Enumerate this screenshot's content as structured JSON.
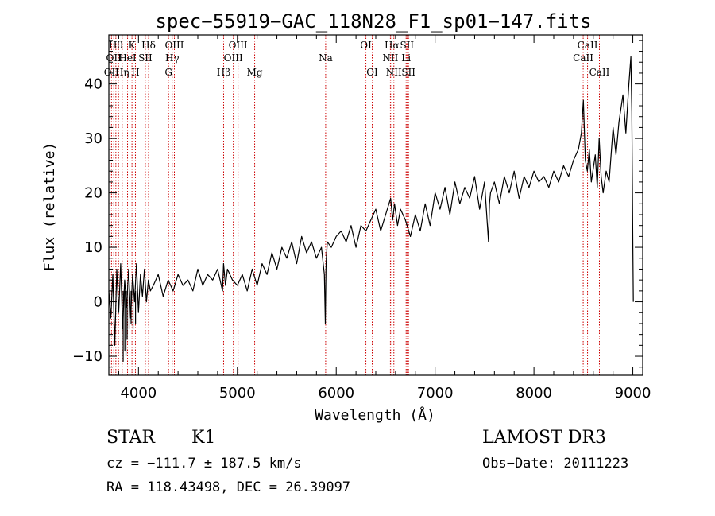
{
  "chart_data": {
    "type": "line",
    "title": "spec−55919−GAC_118N28_F1_sp01−147.fits",
    "xlabel": "Wavelength (Å)",
    "ylabel": "Flux (relative)",
    "xlim": [
      3700,
      9100
    ],
    "ylim": [
      -13.5,
      49
    ],
    "xticks": [
      4000,
      5000,
      6000,
      7000,
      8000,
      9000
    ],
    "xtick_labels": [
      "4000",
      "5000",
      "6000",
      "7000",
      "8000",
      "9000"
    ],
    "yticks": [
      -10,
      0,
      10,
      20,
      30,
      40
    ],
    "ytick_labels": [
      "−10",
      "0",
      "10",
      "20",
      "30",
      "40"
    ],
    "series": [
      {
        "name": "flux",
        "color": "#000000",
        "x": [
          3700,
          3720,
          3740,
          3760,
          3780,
          3800,
          3820,
          3840,
          3860,
          3880,
          3900,
          3920,
          3940,
          3960,
          3980,
          4000,
          4020,
          4040,
          4060,
          4080,
          4100,
          4120,
          4150,
          4200,
          4250,
          4300,
          4350,
          4400,
          4450,
          4500,
          4550,
          4600,
          4650,
          4700,
          4750,
          4800,
          4850,
          4860,
          4880,
          4900,
          4950,
          5000,
          5050,
          5100,
          5150,
          5200,
          5250,
          5300,
          5350,
          5400,
          5450,
          5500,
          5550,
          5600,
          5650,
          5700,
          5750,
          5800,
          5850,
          5880,
          5890,
          5896,
          5900,
          5910,
          5950,
          6000,
          6050,
          6100,
          6150,
          6200,
          6250,
          6300,
          6350,
          6400,
          6450,
          6500,
          6550,
          6570,
          6590,
          6620,
          6650,
          6700,
          6750,
          6800,
          6850,
          6900,
          6950,
          7000,
          7050,
          7100,
          7150,
          7200,
          7250,
          7300,
          7350,
          7400,
          7450,
          7500,
          7540,
          7550,
          7560,
          7600,
          7650,
          7700,
          7750,
          7800,
          7850,
          7900,
          7950,
          8000,
          8050,
          8100,
          8150,
          8200,
          8250,
          8300,
          8350,
          8400,
          8450,
          8480,
          8500,
          8520,
          8540,
          8560,
          8580,
          8620,
          8640,
          8660,
          8680,
          8700,
          8730,
          8760,
          8800,
          8830,
          8860,
          8900,
          8930,
          8960,
          8980,
          8990,
          9000,
          9005
        ],
        "y": [
          2,
          -3,
          5,
          -8,
          6,
          -2,
          7,
          -5,
          4,
          -1,
          6,
          -3,
          5,
          0,
          7,
          -2,
          5,
          1,
          6,
          0,
          4,
          2,
          3,
          5,
          1,
          4,
          2,
          5,
          3,
          4,
          2,
          6,
          3,
          5,
          4,
          6,
          2,
          7,
          3,
          6,
          4,
          3,
          5,
          2,
          6,
          3,
          7,
          5,
          9,
          6,
          10,
          8,
          11,
          7,
          12,
          9,
          11,
          8,
          10,
          5,
          -4,
          6,
          8,
          11,
          10,
          12,
          13,
          11,
          14,
          10,
          14,
          13,
          15,
          17,
          13,
          16,
          19,
          15,
          18,
          14,
          17,
          15,
          12,
          16,
          13,
          18,
          14,
          20,
          17,
          21,
          16,
          22,
          18,
          21,
          19,
          23,
          17,
          22,
          11,
          18,
          20,
          22,
          18,
          23,
          20,
          24,
          19,
          23,
          21,
          24,
          22,
          23,
          21,
          24,
          22,
          25,
          23,
          26,
          28,
          31,
          37,
          26,
          24,
          28,
          22,
          27,
          21,
          30,
          23,
          20,
          24,
          22,
          32,
          27,
          33,
          38,
          31,
          40,
          45,
          35,
          10,
          0
        ],
        "bottom_gaps": [
          [
            3845,
            -11
          ],
          [
            3862,
            -9
          ],
          [
            3873,
            -10
          ],
          [
            3885,
            -7
          ],
          [
            3905,
            -5
          ],
          [
            3925,
            -4
          ],
          [
            3945,
            -5
          ],
          [
            3970,
            -4
          ]
        ]
      }
    ],
    "line_markers": [
      {
        "wavelength": 3727,
        "label": "OII",
        "row": 2
      },
      {
        "wavelength": 3750,
        "label": "OII",
        "row": 1
      },
      {
        "wavelength": 3771,
        "label": "Hθ",
        "row": 0
      },
      {
        "wavelength": 3798,
        "label": "",
        "row": 0
      },
      {
        "wavelength": 3835,
        "label": "Hη",
        "row": 2
      },
      {
        "wavelength": 3889,
        "label": "HeI",
        "row": 1
      },
      {
        "wavelength": 3934,
        "label": "K",
        "row": 0
      },
      {
        "wavelength": 3969,
        "label": "H",
        "row": 2
      },
      {
        "wavelength": 4069,
        "label": "SII",
        "row": 1
      },
      {
        "wavelength": 4102,
        "label": "Hδ",
        "row": 0
      },
      {
        "wavelength": 4304,
        "label": "G",
        "row": 2
      },
      {
        "wavelength": 4341,
        "label": "Hγ",
        "row": 1
      },
      {
        "wavelength": 4363,
        "label": "OIII",
        "row": 0
      },
      {
        "wavelength": 4861,
        "label": "Hβ",
        "row": 2
      },
      {
        "wavelength": 4959,
        "label": "OIII",
        "row": 1
      },
      {
        "wavelength": 5007,
        "label": "OIII",
        "row": 0
      },
      {
        "wavelength": 5175,
        "label": "Mg",
        "row": 2
      },
      {
        "wavelength": 5893,
        "label": "Na",
        "row": 1
      },
      {
        "wavelength": 6300,
        "label": "OI",
        "row": 0
      },
      {
        "wavelength": 6364,
        "label": "OI",
        "row": 2
      },
      {
        "wavelength": 6548,
        "label": "NII",
        "row": 1
      },
      {
        "wavelength": 6563,
        "label": "Hα",
        "row": 0
      },
      {
        "wavelength": 6583,
        "label": "NII",
        "row": 2
      },
      {
        "wavelength": 6707,
        "label": "Li",
        "row": 1
      },
      {
        "wavelength": 6716,
        "label": "SII",
        "row": 0
      },
      {
        "wavelength": 6731,
        "label": "SII",
        "row": 2
      },
      {
        "wavelength": 8498,
        "label": "CaII",
        "row": 1
      },
      {
        "wavelength": 8542,
        "label": "CaII",
        "row": 0
      },
      {
        "wavelength": 8662,
        "label": "CaII",
        "row": 2
      }
    ],
    "marker_color": "#cc0000"
  },
  "info": {
    "class": "STAR",
    "subclass": "K1",
    "cz": "cz = −111.7 ± 187.5 km/s",
    "radec": "RA = 118.43498, DEC =  26.39097",
    "survey": "LAMOST DR3",
    "obsdate": "Obs−Date: 20111223"
  }
}
